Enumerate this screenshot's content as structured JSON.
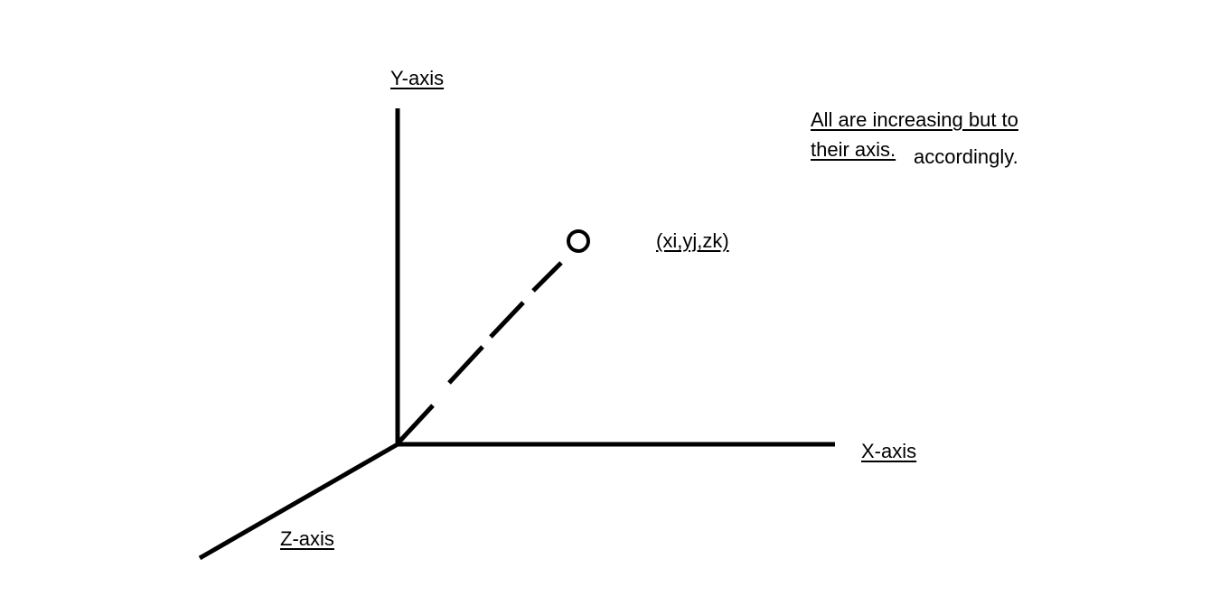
{
  "diagram": {
    "axes": {
      "y_label": "Y-axis",
      "x_label": "X-axis",
      "z_label": "Z-axis"
    },
    "point": {
      "label": "(xi,yj,zk)"
    },
    "note": {
      "line1": "All are increasing but to",
      "line2": "their axis.",
      "tail": "accordingly."
    },
    "colors": {
      "stroke": "#000000",
      "background": "#ffffff"
    }
  }
}
